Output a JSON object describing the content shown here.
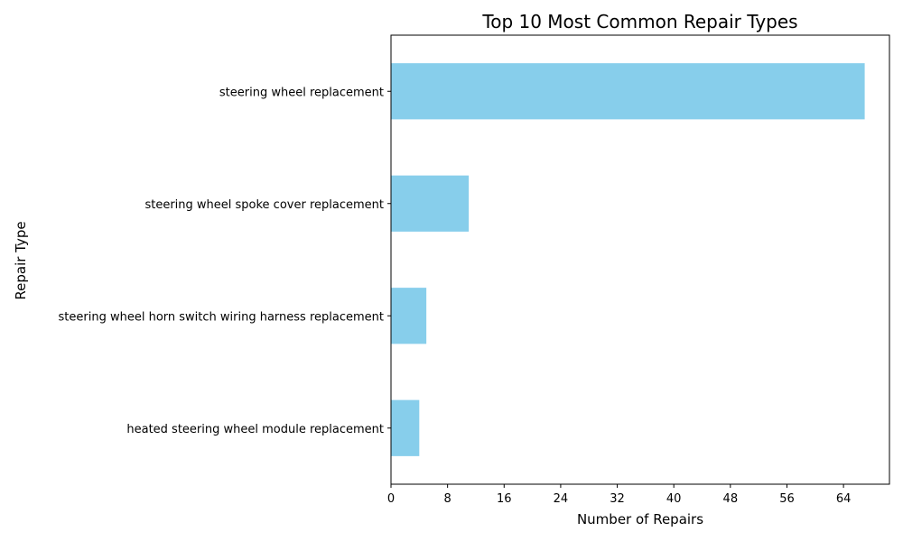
{
  "chart_data": {
    "type": "bar",
    "orientation": "horizontal",
    "title": "Top 10 Most Common Repair Types",
    "xlabel": "Number of Repairs",
    "ylabel": "Repair Type",
    "categories": [
      "steering wheel replacement",
      "steering wheel spoke cover replacement",
      "steering wheel horn switch wiring harness replacement",
      "heated steering wheel module replacement"
    ],
    "values": [
      67,
      11,
      5,
      4
    ],
    "xticks": [
      0,
      8,
      16,
      24,
      32,
      40,
      48,
      56,
      64
    ],
    "xlim": [
      0,
      70.5
    ],
    "bar_color": "#87CEEB",
    "grid": false
  }
}
